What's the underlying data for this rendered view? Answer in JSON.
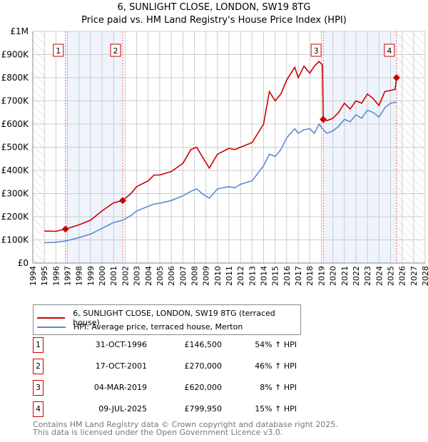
{
  "title": "6, SUNLIGHT CLOSE, LONDON, SW19 8TG",
  "subtitle": "Price paid vs. HM Land Registry's House Price Index (HPI)",
  "chart_data": {
    "type": "line",
    "title": "6, SUNLIGHT CLOSE, LONDON, SW19 8TG",
    "subtitle": "Price paid vs. HM Land Registry's House Price Index (HPI)",
    "xlim": [
      1994,
      2028
    ],
    "ylim": [
      0,
      1000000
    ],
    "x_ticks": [
      "1994",
      "1995",
      "1996",
      "1997",
      "1998",
      "1999",
      "2000",
      "2001",
      "2002",
      "2003",
      "2004",
      "2005",
      "2006",
      "2007",
      "2008",
      "2009",
      "2010",
      "2011",
      "2012",
      "2013",
      "2014",
      "2015",
      "2016",
      "2017",
      "2018",
      "2019",
      "2020",
      "2021",
      "2022",
      "2023",
      "2024",
      "2025",
      "2026",
      "2027",
      "2028"
    ],
    "y_ticks": [
      {
        "v": 0,
        "label": "£0"
      },
      {
        "v": 100000,
        "label": "£100K"
      },
      {
        "v": 200000,
        "label": "£200K"
      },
      {
        "v": 300000,
        "label": "£300K"
      },
      {
        "v": 400000,
        "label": "£400K"
      },
      {
        "v": 500000,
        "label": "£500K"
      },
      {
        "v": 600000,
        "label": "£600K"
      },
      {
        "v": 700000,
        "label": "£700K"
      },
      {
        "v": 800000,
        "label": "£800K"
      },
      {
        "v": 900000,
        "label": "£900K"
      },
      {
        "v": 1000000,
        "label": "£1M"
      }
    ],
    "grid": true,
    "series": [
      {
        "name": "6, SUNLIGHT CLOSE, LONDON, SW19 8TG (terraced house)",
        "color": "#cc0000",
        "x": [
          1995,
          1996,
          1996.83,
          1998,
          1999,
          2000,
          2001,
          2001.79,
          2002.5,
          2003,
          2004,
          2004.5,
          2005,
          2006,
          2007,
          2007.7,
          2008.2,
          2008.8,
          2009.3,
          2010,
          2011,
          2011.5,
          2012,
          2013,
          2014,
          2014.5,
          2015,
          2015.5,
          2016,
          2016.7,
          2017,
          2017.5,
          2018,
          2018.4,
          2018.8,
          2019.1,
          2019.17,
          2019.5,
          2020,
          2020.5,
          2021,
          2021.5,
          2022,
          2022.5,
          2023,
          2023.5,
          2024,
          2024.5,
          2025,
          2025.4,
          2025.52
        ],
        "y": [
          138000,
          137000,
          146500,
          165000,
          185000,
          225000,
          260000,
          270000,
          300000,
          330000,
          355000,
          380000,
          380000,
          395000,
          430000,
          490000,
          500000,
          450000,
          410000,
          470000,
          495000,
          490000,
          500000,
          520000,
          600000,
          740000,
          700000,
          730000,
          790000,
          845000,
          800000,
          850000,
          820000,
          850000,
          870000,
          855000,
          620000,
          615000,
          625000,
          650000,
          690000,
          665000,
          700000,
          690000,
          730000,
          710000,
          680000,
          740000,
          745000,
          750000,
          799950
        ]
      },
      {
        "name": "HPI: Average price, terraced house, Merton",
        "color": "#5b8bd0",
        "x": [
          1995,
          1996,
          1996.83,
          1998,
          1999,
          2000,
          2001,
          2001.79,
          2002.5,
          2003,
          2004,
          2004.5,
          2005,
          2006,
          2007,
          2007.7,
          2008.2,
          2008.8,
          2009.3,
          2010,
          2011,
          2011.5,
          2012,
          2013,
          2014,
          2014.5,
          2015,
          2015.5,
          2016,
          2016.7,
          2017,
          2017.5,
          2018,
          2018.4,
          2018.8,
          2019.17,
          2019.5,
          2020,
          2020.5,
          2021,
          2021.5,
          2022,
          2022.5,
          2023,
          2023.5,
          2024,
          2024.5,
          2025,
          2025.52
        ],
        "y": [
          88000,
          90000,
          95000,
          110000,
          125000,
          150000,
          175000,
          185000,
          205000,
          225000,
          245000,
          255000,
          258000,
          270000,
          290000,
          310000,
          320000,
          295000,
          280000,
          320000,
          330000,
          325000,
          340000,
          355000,
          420000,
          470000,
          460000,
          490000,
          540000,
          580000,
          560000,
          575000,
          580000,
          560000,
          600000,
          575000,
          560000,
          570000,
          590000,
          620000,
          610000,
          640000,
          625000,
          660000,
          650000,
          630000,
          670000,
          690000,
          695000
        ]
      }
    ],
    "sales": [
      {
        "n": "1",
        "x": 1996.83,
        "y": 146500
      },
      {
        "n": "2",
        "x": 2001.79,
        "y": 270000
      },
      {
        "n": "3",
        "x": 2019.17,
        "y": 620000
      },
      {
        "n": "4",
        "x": 2025.52,
        "y": 799950
      }
    ],
    "legend_placement": "below"
  },
  "legend": [
    {
      "label": "6, SUNLIGHT CLOSE, LONDON, SW19 8TG (terraced house)",
      "color": "#cc0000"
    },
    {
      "label": "HPI: Average price, terraced house, Merton",
      "color": "#5b8bd0"
    }
  ],
  "table": [
    {
      "n": "1",
      "date": "31-OCT-1996",
      "price": "£146,500",
      "hpi": "54% ↑ HPI"
    },
    {
      "n": "2",
      "date": "17-OCT-2001",
      "price": "£270,000",
      "hpi": "46% ↑ HPI"
    },
    {
      "n": "3",
      "date": "04-MAR-2019",
      "price": "£620,000",
      "hpi": "8% ↑ HPI"
    },
    {
      "n": "4",
      "date": "09-JUL-2025",
      "price": "£799,950",
      "hpi": "15% ↑ HPI"
    }
  ],
  "footer": [
    "Contains HM Land Registry data © Crown copyright and database right 2025.",
    "This data is licensed under the Open Government Licence v3.0."
  ]
}
